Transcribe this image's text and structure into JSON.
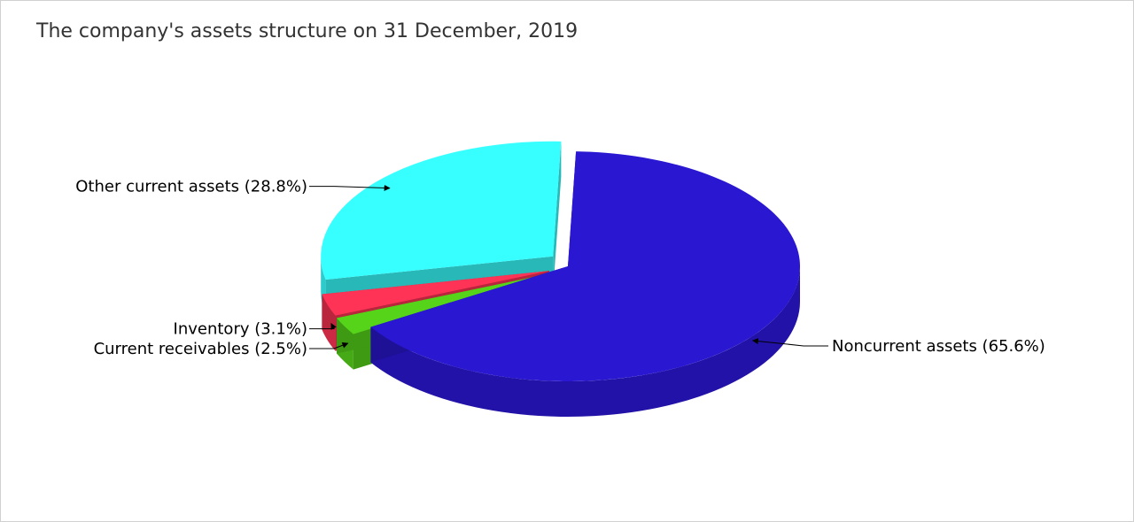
{
  "chart_data": {
    "type": "pie",
    "title": "The company's assets structure on 31 December, 2019",
    "slices": [
      {
        "label": "Noncurrent assets (65.6%)",
        "value": 65.6,
        "color": "#2A17D1",
        "exploded": false
      },
      {
        "label": "Current receivables (2.5%)",
        "value": 2.5,
        "color": "#56D41A",
        "exploded": true
      },
      {
        "label": "Inventory (3.1%)",
        "value": 3.1,
        "color": "#FF3355",
        "exploded": true
      },
      {
        "label": "Other current assets (28.8%)",
        "value": 28.8,
        "color": "#38FFFF",
        "exploded": true
      }
    ],
    "style": "3d-exploded",
    "legend": "none"
  }
}
